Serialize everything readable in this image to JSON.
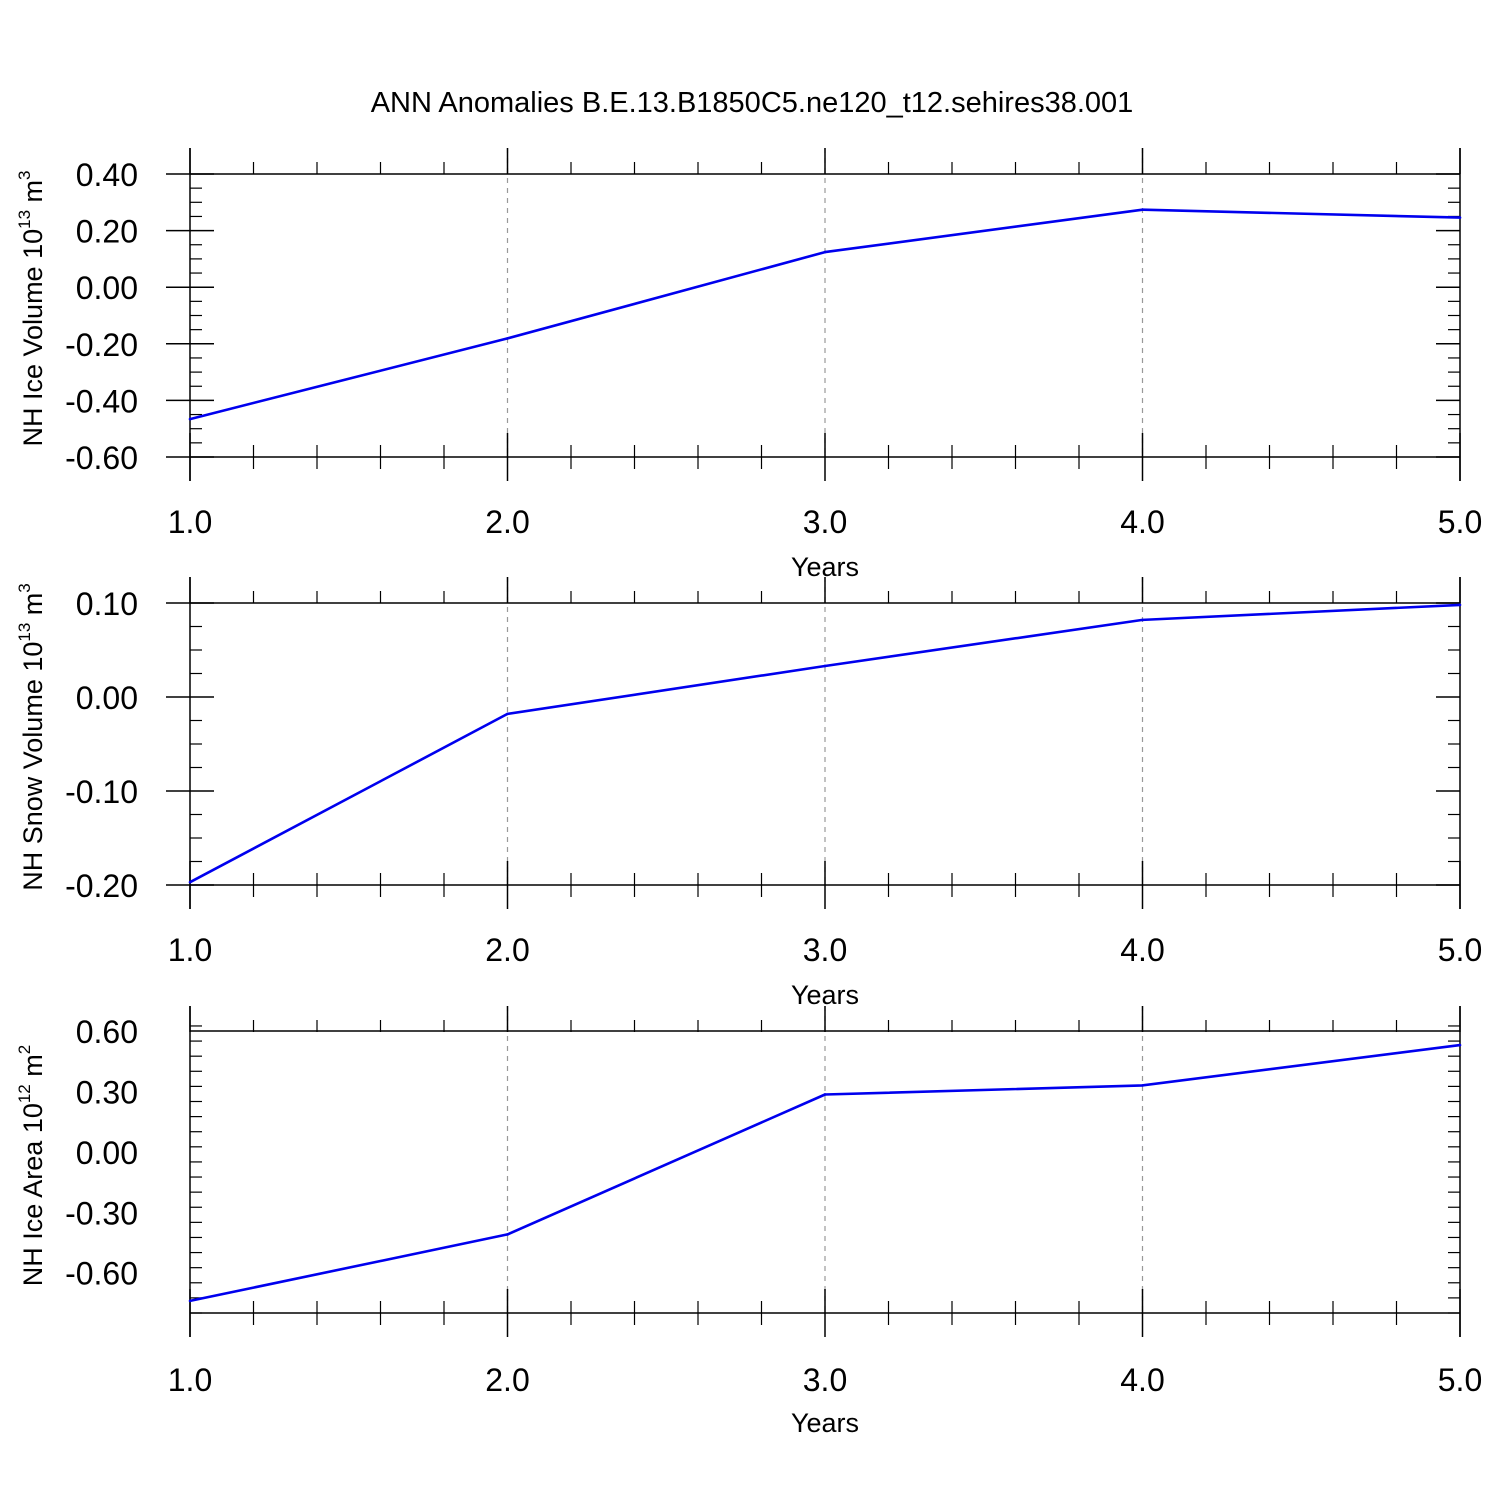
{
  "title": "ANN Anomalies B.E.13.B1850C5.ne120_t12.sehires38.001",
  "line_color": "#0000ee",
  "chart_data": [
    {
      "type": "line",
      "x": [
        1.0,
        2.0,
        3.0,
        4.0,
        5.0
      ],
      "series": [
        {
          "values": [
            -0.466,
            -0.181,
            0.124,
            0.274,
            0.246
          ]
        }
      ],
      "xlabel": "Years",
      "ylabel": {
        "text": "NH Ice Volume 10",
        "sup": "13",
        "unit": " m",
        "unit_sup": "3"
      },
      "xlim": [
        1.0,
        5.0
      ],
      "ylim": [
        -0.6,
        0.4
      ],
      "xticks": [
        "1.0",
        "2.0",
        "3.0",
        "4.0",
        "5.0"
      ],
      "yticks": [
        {
          "value": 0.4,
          "label": "0.40"
        },
        {
          "value": 0.2,
          "label": "0.20"
        },
        {
          "value": 0.0,
          "label": "0.00"
        },
        {
          "value": -0.2,
          "label": "-0.20"
        },
        {
          "value": -0.4,
          "label": "-0.40"
        },
        {
          "value": -0.6,
          "label": "-0.60"
        }
      ],
      "grid": "vertical dashed",
      "legend": "none"
    },
    {
      "type": "line",
      "x": [
        1.0,
        2.0,
        3.0,
        4.0,
        5.0
      ],
      "series": [
        {
          "values": [
            -0.197,
            -0.018,
            0.033,
            0.082,
            0.098
          ]
        }
      ],
      "xlabel": "Years",
      "ylabel": {
        "text": "NH Snow Volume 10",
        "sup": "13",
        "unit": " m",
        "unit_sup": "3"
      },
      "xlim": [
        1.0,
        5.0
      ],
      "ylim": [
        -0.2,
        0.1
      ],
      "xticks": [
        "1.0",
        "2.0",
        "3.0",
        "4.0",
        "5.0"
      ],
      "yticks": [
        {
          "value": 0.1,
          "label": "0.10"
        },
        {
          "value": 0.0,
          "label": "0.00"
        },
        {
          "value": -0.1,
          "label": "-0.10"
        },
        {
          "value": -0.2,
          "label": "-0.20"
        }
      ],
      "grid": "vertical dashed",
      "legend": "none"
    },
    {
      "type": "line",
      "x": [
        1.0,
        2.0,
        3.0,
        4.0,
        5.0
      ],
      "series": [
        {
          "values": [
            -0.74,
            -0.41,
            0.285,
            0.33,
            0.53
          ]
        }
      ],
      "xlabel": "Years",
      "ylabel": {
        "text": "NH Ice Area 10",
        "sup": "12",
        "unit": " m",
        "unit_sup": "2"
      },
      "xlim": [
        1.0,
        5.0
      ],
      "ylim": [
        -0.8,
        0.6
      ],
      "xticks": [
        "1.0",
        "2.0",
        "3.0",
        "4.0",
        "5.0"
      ],
      "yticks": [
        {
          "value": 0.6,
          "label": "0.60"
        },
        {
          "value": 0.3,
          "label": "0.30"
        },
        {
          "value": 0.0,
          "label": "0.00"
        },
        {
          "value": -0.3,
          "label": "-0.30"
        },
        {
          "value": -0.6,
          "label": "-0.60"
        }
      ],
      "grid": "vertical dashed",
      "legend": "none"
    }
  ]
}
